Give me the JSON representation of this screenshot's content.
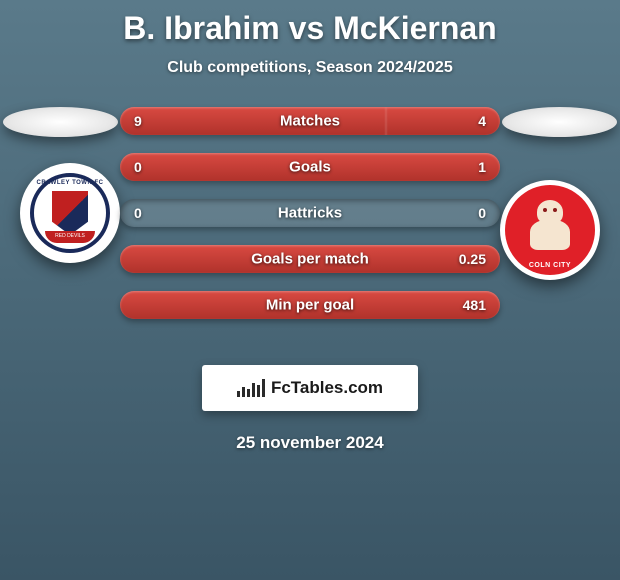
{
  "title": "B. Ibrahim vs McKiernan",
  "subtitle": "Club competitions, Season 2024/2025",
  "date": "25 november 2024",
  "logo_text": "FcTables.com",
  "colors": {
    "bar_fill": "#c8352e",
    "bar_track": "rgba(255,255,255,0.12)",
    "text": "#ffffff"
  },
  "left_crest": {
    "top_text": "CRAWLEY TOWN FC",
    "bottom_text": "RED DEVILS"
  },
  "right_crest": {
    "bottom_text": "COLN CITY"
  },
  "stats": [
    {
      "label": "Matches",
      "left_val": "9",
      "right_val": "4",
      "left_pct": 70,
      "right_pct": 30
    },
    {
      "label": "Goals",
      "left_val": "0",
      "right_val": "1",
      "left_pct": 0,
      "right_pct": 100
    },
    {
      "label": "Hattricks",
      "left_val": "0",
      "right_val": "0",
      "left_pct": 0,
      "right_pct": 0
    },
    {
      "label": "Goals per match",
      "left_val": "",
      "right_val": "0.25",
      "left_pct": 0,
      "right_pct": 100
    },
    {
      "label": "Min per goal",
      "left_val": "",
      "right_val": "481",
      "left_pct": 0,
      "right_pct": 100
    }
  ],
  "logo_bar_heights": [
    6,
    10,
    8,
    14,
    12,
    18
  ]
}
